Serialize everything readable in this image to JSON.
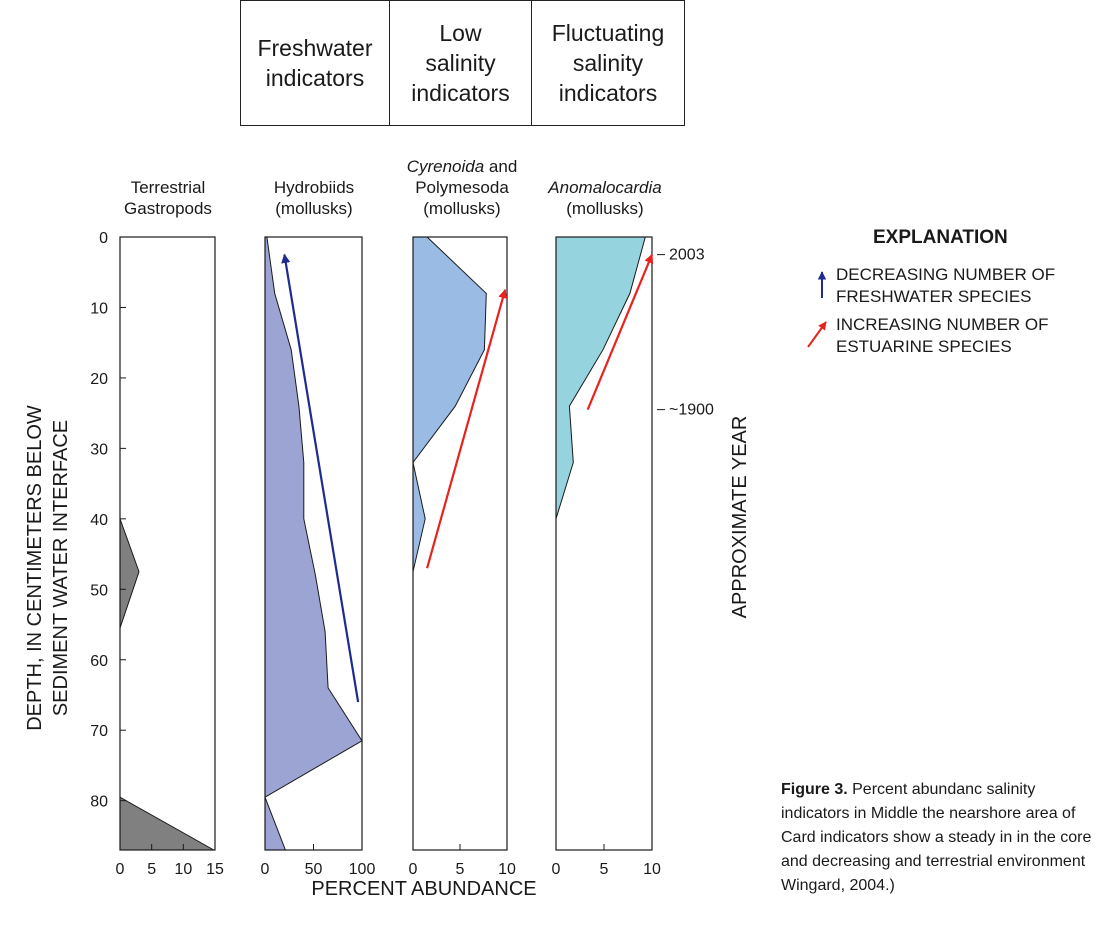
{
  "colors": {
    "freshwater": "#9ba4d3",
    "low_salinity": "#99bbe4",
    "fluctuating_salinity": "#95d3de",
    "terrestrial": "#808080",
    "decreasing_arrow": "#1f2b8f",
    "increasing_arrow": "#e8231f"
  },
  "header": {
    "freshwater": "Freshwater\nindicators",
    "low_salinity": "Low\nsalinity\nindicators",
    "fluctuating": "Fluctuating\nsalinity\nindicators"
  },
  "panel_titles": {
    "terrestrial": "Terrestrial\nGastropods",
    "hydrobiids": "Hydrobiids\n(mollusks)",
    "cyrenoida_italic": "Cyrenoida",
    "cyrenoida_rest": " and\nPolymesoda\n(mollusks)",
    "anomalocardia_italic": "Anomalocardia",
    "anomalocardia_rest": "\n(mollusks)"
  },
  "explanation": {
    "title": "EXPLANATION",
    "decreasing": "DECREASING NUMBER OF\nFRESHWATER SPECIES",
    "increasing": "INCREASING NUMBER OF\nESTUARINE SPECIES"
  },
  "y_axis_label": "DEPTH, IN CENTIMETERS BELOW\nSEDIMENT WATER INTERFACE",
  "secondary_axis_label": "APPROXIMATE YEAR",
  "x_axis_label": "PERCENT ABUNDANCE",
  "caption": {
    "bold": "Figure 3.",
    "text": " Percent abundanc salinity indicators in Middle the nearshore area of Card indicators show a steady in in the core and decreasing and terrestrial environment Wingard, 2004.)"
  },
  "chart_data": [
    {
      "type": "area",
      "name": "Terrestrial Gastropods",
      "series_color": "terrestrial",
      "xlim": [
        0,
        15
      ],
      "xticks": [
        0,
        5,
        10,
        15
      ],
      "ylim": [
        0,
        87
      ],
      "yticks": [
        0,
        10,
        20,
        30,
        40,
        50,
        60,
        70,
        80
      ],
      "y_axis_labels": true,
      "depth": [
        0,
        40,
        47.5,
        55.5,
        79.5,
        87
      ],
      "values": [
        0,
        0,
        3,
        0,
        0,
        14.8
      ]
    },
    {
      "type": "area",
      "name": "Hydrobiids (mollusks)",
      "series_color": "freshwater",
      "xlim": [
        0,
        100
      ],
      "xticks": [
        0,
        50,
        100
      ],
      "ylim": [
        0,
        87
      ],
      "depth": [
        0,
        8,
        16,
        24,
        32,
        40,
        48,
        56,
        64,
        71.5,
        79.5,
        87
      ],
      "values": [
        2,
        10,
        27,
        35,
        40,
        40,
        52,
        62,
        65,
        100,
        0,
        21
      ],
      "arrow": {
        "color": "decreasing_arrow",
        "from": [
          96,
          66
        ],
        "to": [
          20,
          2.5
        ]
      }
    },
    {
      "type": "area",
      "name": "Cyrenoida and Polymesoda (mollusks)",
      "series_color": "low_salinity",
      "xlim": [
        0,
        10
      ],
      "xticks": [
        0,
        5,
        10
      ],
      "ylim": [
        0,
        87
      ],
      "depth": [
        0,
        8,
        16,
        24,
        32,
        40,
        47.5
      ],
      "values": [
        1.5,
        7.8,
        7.6,
        4.5,
        0,
        1.3,
        0
      ],
      "arrow": {
        "color": "increasing_arrow",
        "from": [
          1.5,
          47
        ],
        "to": [
          9.8,
          7.5
        ]
      }
    },
    {
      "type": "area",
      "name": "Anomalocardia (mollusks)",
      "series_color": "fluctuating_salinity",
      "xlim": [
        0,
        10
      ],
      "xticks": [
        0,
        5,
        10
      ],
      "ylim": [
        0,
        87
      ],
      "depth": [
        0,
        8,
        16,
        24,
        32,
        40
      ],
      "values": [
        9.3,
        7.7,
        4.9,
        1.4,
        1.8,
        0
      ],
      "arrow": {
        "color": "increasing_arrow",
        "from": [
          3.3,
          24.5
        ],
        "to": [
          10,
          2.5
        ]
      },
      "year_ticks": [
        {
          "depth": 2.5,
          "label": "2003"
        },
        {
          "depth": 24.5,
          "label": "~1900"
        }
      ]
    }
  ]
}
